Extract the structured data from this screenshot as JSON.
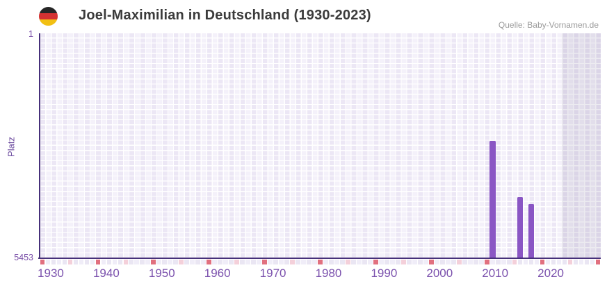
{
  "header": {
    "title": "Joel-Maximilian in Deutschland (1930-2023)",
    "source": "Quelle: Baby-Vornamen.de",
    "flag_icon": "german-flag",
    "flag_colors": [
      "#262626",
      "#d43232",
      "#f2c013"
    ]
  },
  "chart_data": {
    "type": "bar",
    "title": "Joel-Maximilian in Deutschland (1930-2023)",
    "xlabel": "",
    "ylabel": "Platz",
    "grid": true,
    "legend": "none",
    "y_axis": {
      "top_label": "1",
      "bottom_label": "5453",
      "min": 1,
      "max": 5453,
      "inverted": true
    },
    "x_axis": {
      "start_year": 1928,
      "end_year": 2029,
      "tick_years": [
        1930,
        1940,
        1950,
        1960,
        1970,
        1980,
        1990,
        2000,
        2010,
        2020
      ]
    },
    "series": [
      {
        "name": "Platz",
        "points": [
          {
            "year": 2009,
            "rank": 2614
          },
          {
            "year": 2014,
            "rank": 3976
          },
          {
            "year": 2016,
            "rank": 4145
          }
        ]
      }
    ],
    "no_data_region": {
      "from_year": 2022
    },
    "year_strip": {
      "red_years": [
        1928,
        1938,
        1948,
        1958,
        1968,
        1978,
        1988,
        1998,
        2008,
        2018,
        2028
      ],
      "pink_years": [
        1933,
        1943,
        1953,
        1963,
        1973,
        1983,
        1993,
        2003,
        2013,
        2023
      ]
    },
    "colors": {
      "bar": "#8a56c4",
      "axis_line": "#46307a",
      "x_tick_label": "#7b51ad",
      "y_tick_label": "#7a4fa8",
      "tile_light": "#f4f1fa",
      "tile_alt": "#ece7f5",
      "grid_line": "#ffffff",
      "shade_overlay": "rgba(66,60,110,0.10)",
      "strip_red": "#e1707f",
      "strip_pink": "#f4d0da",
      "strip_default": "#f0edf8",
      "strip_alt": "#eae6f3"
    }
  }
}
